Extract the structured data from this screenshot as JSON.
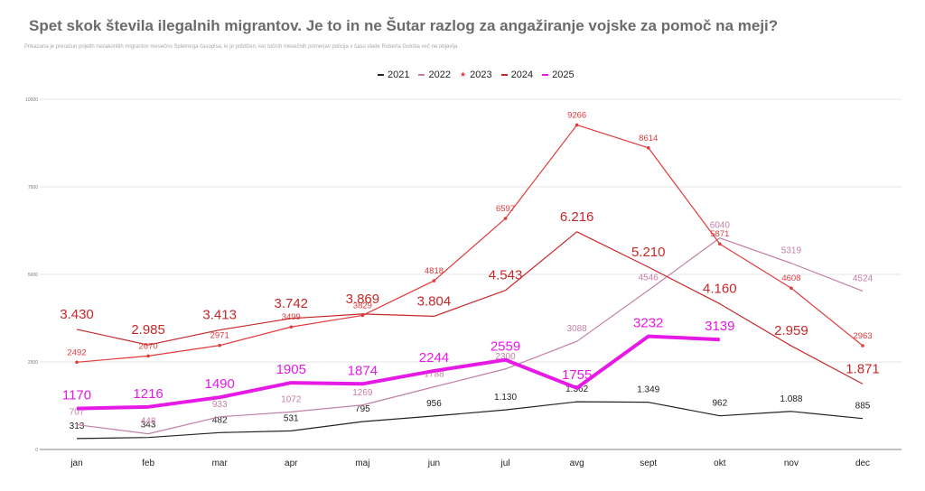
{
  "chart_data": {
    "type": "line",
    "title": "Spet skok števila ilegalnih migrantov. Je to in ne Šutar razlog za angažiranje vojske za pomoč na meji?",
    "subtitle": "Prikazana je preračun prijetih nezakonitih migrantov mesečno Spletnega časopisa, ki je približen, ker točnih mesečnih primerjav policija v času vlade Roberta Goloba več ne objavlja",
    "xlabel": "",
    "ylabel": "",
    "categories": [
      "jan",
      "feb",
      "mar",
      "apr",
      "maj",
      "jun",
      "jul",
      "avg",
      "sept",
      "okt",
      "nov",
      "dec"
    ],
    "ylim": [
      0,
      10000
    ],
    "yticks": [
      0,
      2500,
      5000,
      7500,
      10000
    ],
    "ytick_labels": [
      "0",
      "2500",
      "5000",
      "7500",
      "10000"
    ],
    "grid": true,
    "legend_position": "top-center",
    "series": [
      {
        "name": "2021",
        "color": "#222222",
        "values": [
          313,
          343,
          482,
          531,
          795,
          956,
          1130,
          1362,
          1349,
          962,
          1088,
          885
        ],
        "labels": [
          "313",
          "343",
          "482",
          "531",
          "795",
          "956",
          "1.130",
          "1.362",
          "1.349",
          "962",
          "1.088",
          "885"
        ]
      },
      {
        "name": "2022",
        "color": "#c47fa8",
        "values": [
          707,
          448,
          933,
          1072,
          1269,
          1788,
          2300,
          3088,
          4546,
          6040,
          5319,
          4524
        ],
        "labels": [
          "707",
          "448",
          "933",
          "1072",
          "1269",
          "1788",
          "2300",
          "3088",
          "4546",
          "6040",
          "5319",
          "4524"
        ]
      },
      {
        "name": "2023",
        "color": "#e03a3a",
        "marker": "star",
        "values": [
          2492,
          2670,
          2971,
          3499,
          3829,
          4818,
          6597,
          9266,
          8614,
          5871,
          4608,
          2963
        ],
        "labels": [
          "2492",
          "2670",
          "2971",
          "3499",
          "3829",
          "4818",
          "6597",
          "9266",
          "8614",
          "5871",
          "4608",
          "2963"
        ]
      },
      {
        "name": "2024",
        "color": "#c62828",
        "values": [
          3430,
          2985,
          3413,
          3742,
          3869,
          3804,
          4543,
          6216,
          5210,
          4160,
          2959,
          1871
        ],
        "labels": [
          "3.430",
          "2.985",
          "3.413",
          "3.742",
          "3.869",
          "3.804",
          "4.543",
          "6.216",
          "5.210",
          "4.160",
          "2.959",
          "1.871"
        ]
      },
      {
        "name": "2025",
        "color": "#e619e6",
        "values": [
          1170,
          1216,
          1490,
          1905,
          1874,
          2244,
          2559,
          1755,
          3232,
          3139,
          null,
          null
        ],
        "labels": [
          "1170",
          "1216",
          "1490",
          "1905",
          "1874",
          "2244",
          "2559",
          "1755",
          "3232",
          "3139",
          null,
          null
        ]
      }
    ]
  }
}
